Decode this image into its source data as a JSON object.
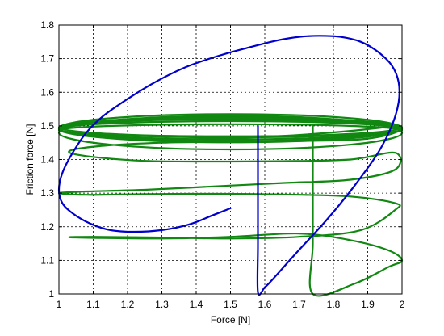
{
  "chart_data": {
    "type": "line",
    "title": "",
    "xlabel": "Force [N]",
    "ylabel": "Friction force [N]",
    "xlim": [
      1,
      2
    ],
    "ylim": [
      1,
      1.8
    ],
    "xticks": [
      1,
      1.1,
      1.2,
      1.3,
      1.4,
      1.5,
      1.6,
      1.7,
      1.8,
      1.9,
      2
    ],
    "xtick_labels": [
      "1",
      "1.1",
      "1.2",
      "1.3",
      "1.4",
      "1.5",
      "1.6",
      "1.7",
      "1.8",
      "1.9",
      "2"
    ],
    "yticks": [
      1,
      1.1,
      1.2,
      1.3,
      1.4,
      1.5,
      1.6,
      1.7,
      1.8
    ],
    "ytick_labels": [
      "1",
      "1.1",
      "1.2",
      "1.3",
      "1.4",
      "1.5",
      "1.6",
      "1.7",
      "1.8"
    ],
    "grid": true,
    "grid_style": "dotted",
    "legend": null,
    "series": [
      {
        "color": "#0000cc",
        "width": 2.2,
        "x": [
          1.5,
          1.45,
          1.38,
          1.3,
          1.22,
          1.15,
          1.09,
          1.04,
          1.01,
          1.0,
          1.01,
          1.04,
          1.08,
          1.13,
          1.2,
          1.28,
          1.37,
          1.47,
          1.56,
          1.64,
          1.7,
          1.76,
          1.82,
          1.88,
          1.93,
          1.97,
          1.99,
          1.99,
          1.97,
          1.93,
          1.86,
          1.78,
          1.69,
          1.62,
          1.6,
          1.58,
          1.58,
          1.58,
          1.58
        ],
        "y": [
          1.255,
          1.235,
          1.207,
          1.19,
          1.185,
          1.19,
          1.21,
          1.24,
          1.27,
          1.31,
          1.36,
          1.42,
          1.48,
          1.53,
          1.58,
          1.63,
          1.675,
          1.71,
          1.735,
          1.755,
          1.765,
          1.768,
          1.765,
          1.75,
          1.72,
          1.68,
          1.63,
          1.57,
          1.5,
          1.42,
          1.32,
          1.22,
          1.12,
          1.04,
          1.02,
          1.005,
          1.15,
          1.35,
          1.5
        ]
      },
      {
        "color": "#118811",
        "width": 2.2,
        "x": [
          1.74,
          1.74,
          1.74,
          1.74,
          1.86,
          1.96,
          2.0,
          1.96,
          1.85,
          1.7,
          1.5,
          1.3,
          1.1,
          1.03,
          1.1,
          1.3,
          1.5,
          1.7,
          1.88,
          1.98,
          1.98,
          1.85,
          1.65,
          1.45,
          1.25,
          1.08,
          1.0,
          1.08,
          1.25,
          1.45,
          1.65,
          1.85,
          1.98,
          1.98,
          1.85,
          1.65,
          1.45,
          1.25,
          1.08,
          1.03,
          1.12,
          1.3,
          1.5,
          1.7,
          1.88,
          1.98,
          1.98,
          1.85,
          1.65,
          1.45,
          1.25,
          1.08,
          1.0,
          1.08,
          1.25,
          1.45,
          1.65,
          1.85,
          1.98
        ],
        "y": [
          1.5,
          1.35,
          1.15,
          1.0,
          1.03,
          1.08,
          1.1,
          1.13,
          1.16,
          1.18,
          1.17,
          1.165,
          1.167,
          1.169,
          1.17,
          1.168,
          1.165,
          1.17,
          1.19,
          1.25,
          1.27,
          1.29,
          1.296,
          1.298,
          1.297,
          1.295,
          1.3,
          1.305,
          1.31,
          1.32,
          1.33,
          1.34,
          1.37,
          1.42,
          1.4,
          1.395,
          1.394,
          1.396,
          1.41,
          1.425,
          1.44,
          1.45,
          1.453,
          1.455,
          1.46,
          1.48,
          1.5,
          1.51,
          1.515,
          1.518,
          1.518,
          1.513,
          1.49,
          1.47,
          1.46,
          1.462,
          1.47,
          1.485,
          1.5
        ]
      }
    ],
    "rings": {
      "color": "#118811",
      "width": 2.2,
      "cx": 1.5,
      "rx": 0.5,
      "items": [
        {
          "cy": 1.49,
          "ry": 0.03
        },
        {
          "cy": 1.491,
          "ry": 0.036
        },
        {
          "cy": 1.493,
          "ry": 0.042
        },
        {
          "cy": 1.49,
          "ry": 0.024
        },
        {
          "cy": 1.487,
          "ry": 0.018
        },
        {
          "cy": 1.48,
          "ry": 0.05
        },
        {
          "cy": 1.496,
          "ry": 0.028
        }
      ]
    }
  }
}
